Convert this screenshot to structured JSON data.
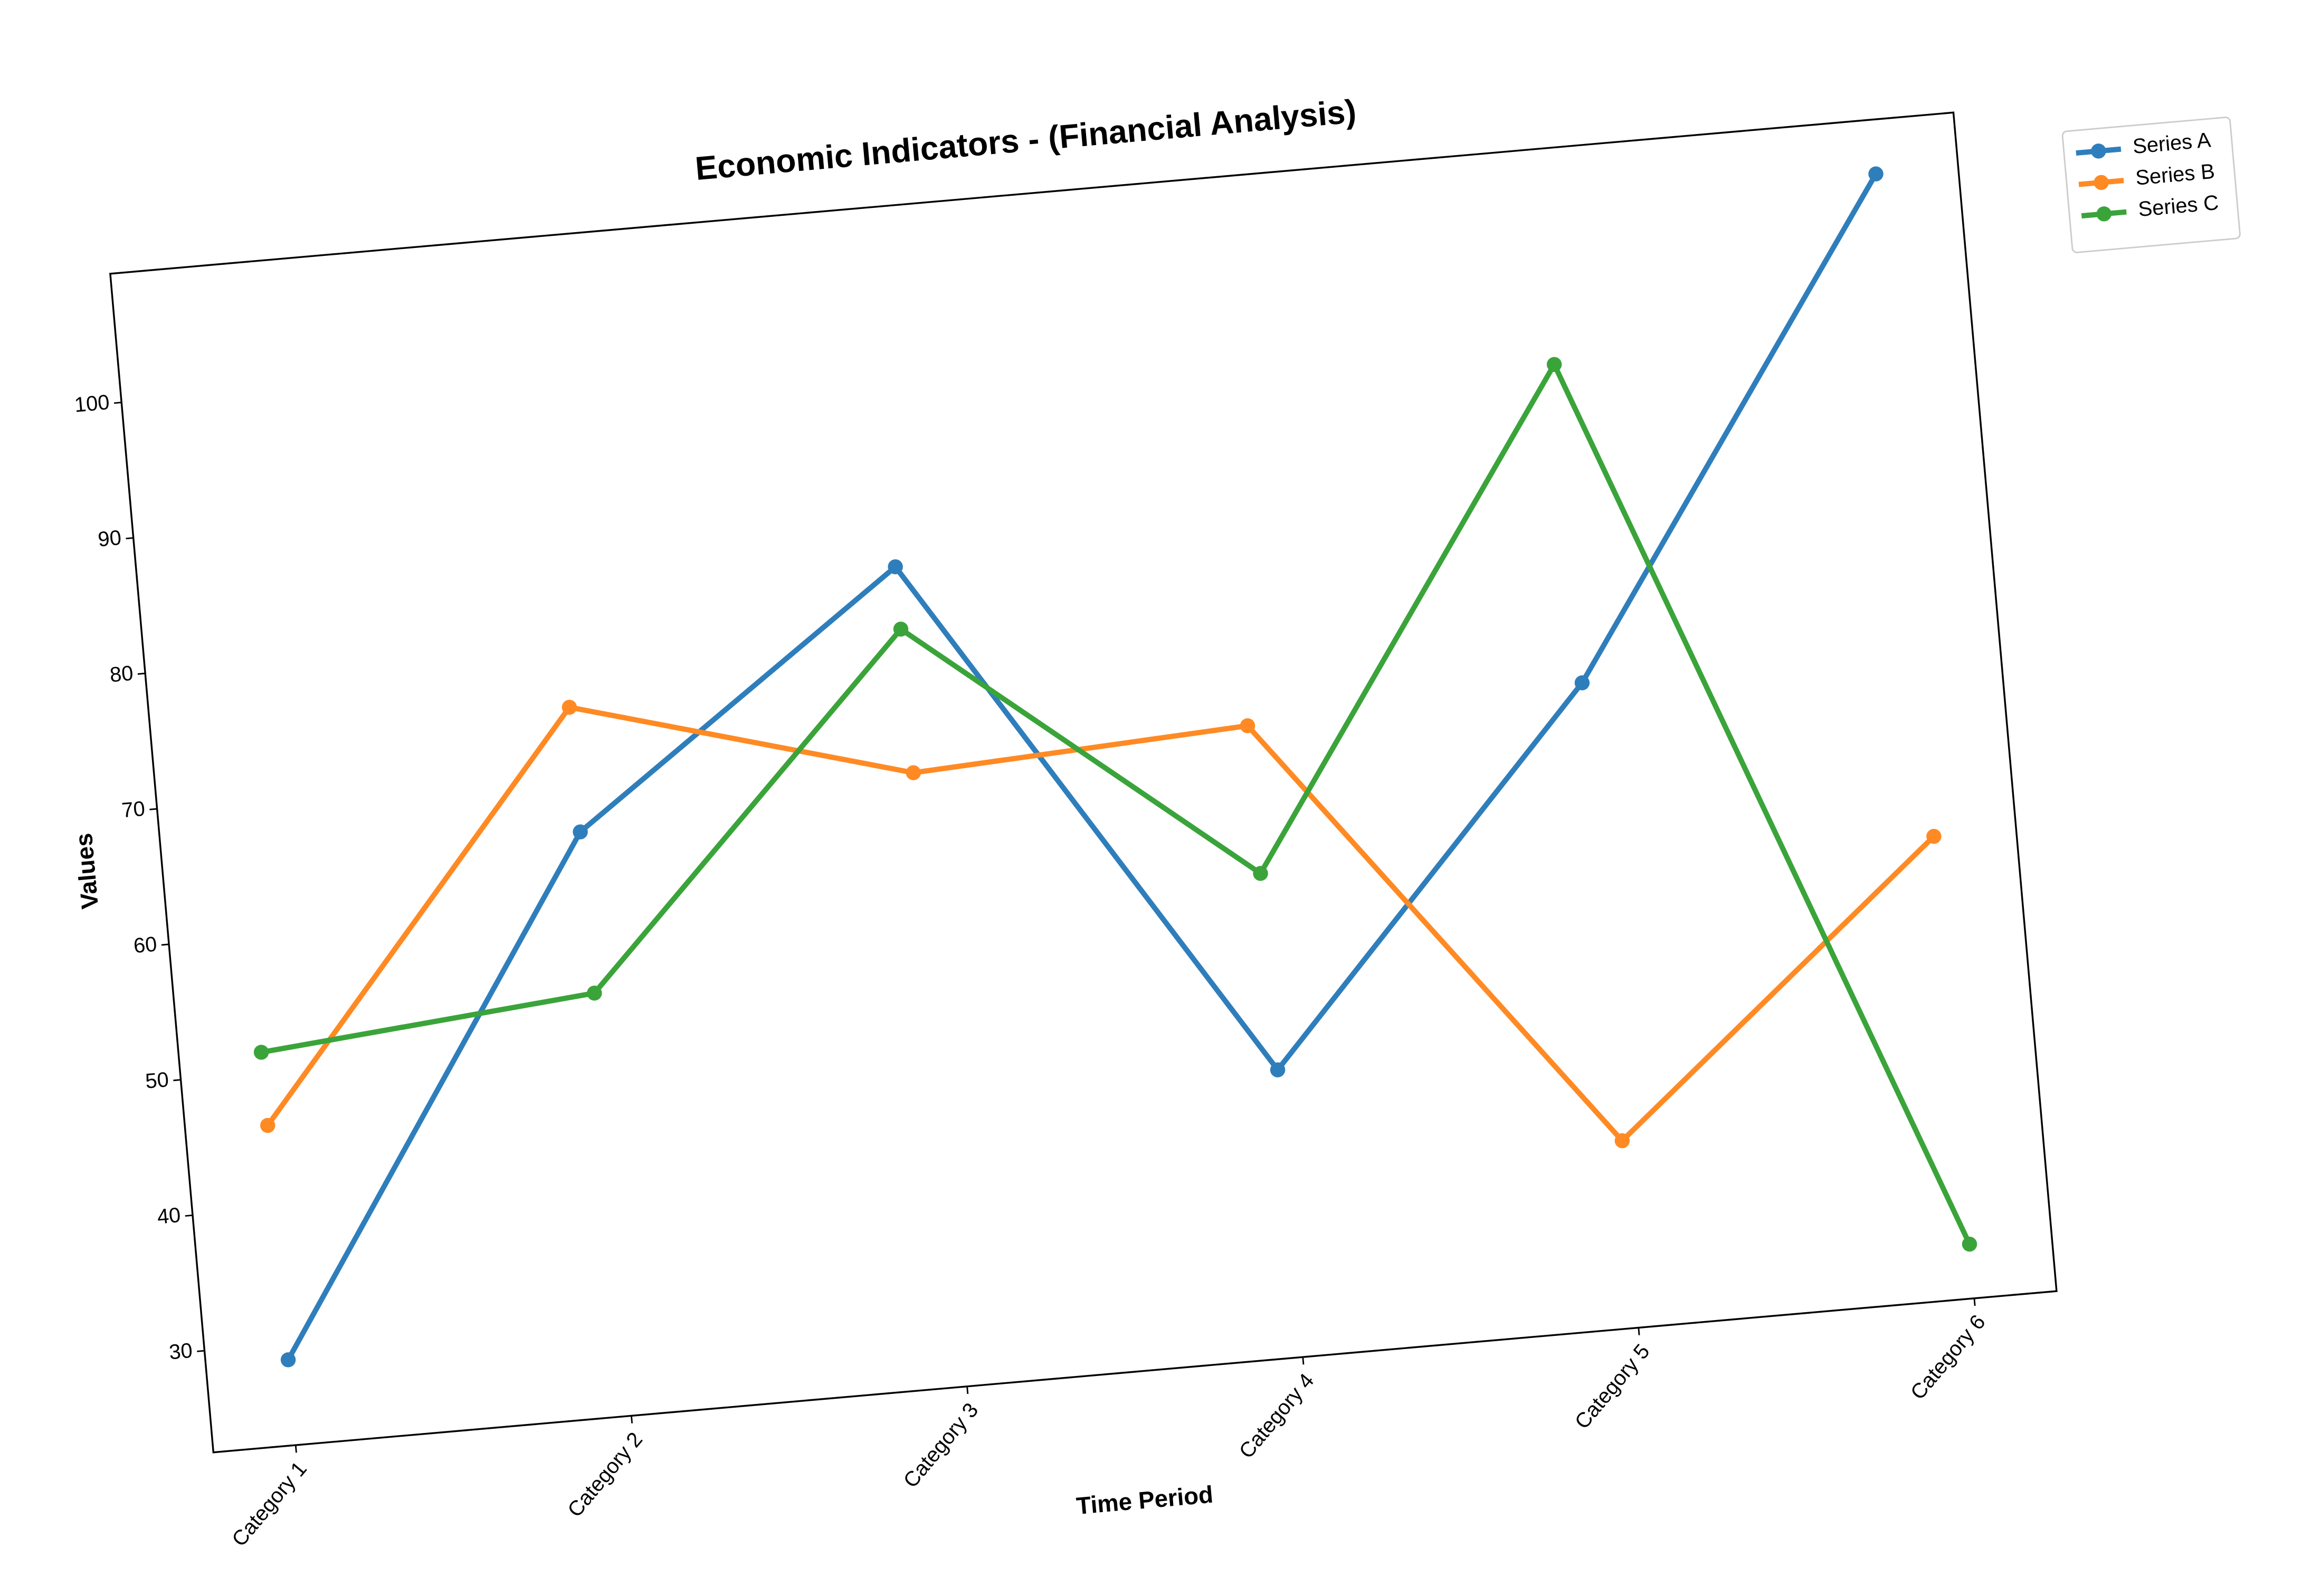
{
  "chart_data": {
    "type": "line",
    "title": "Economic Indicators - (Financial Analysis)",
    "x_label": "Time Period",
    "y_label": "Values",
    "categories": [
      "Category 1",
      "Category 2",
      "Category 3",
      "Category 4",
      "Category 5",
      "Category 6"
    ],
    "series": [
      {
        "name": "Series A",
        "color": "#2f7ebc",
        "values": [
          28.8,
          65.6,
          83.0,
          43.7,
          70.1,
          105.5
        ]
      },
      {
        "name": "Series B",
        "color": "#ff8a24",
        "values": [
          46.1,
          74.8,
          67.8,
          69.1,
          36.3,
          56.6
        ]
      },
      {
        "name": "Series C",
        "color": "#3aa43a",
        "values": [
          51.5,
          53.7,
          78.4,
          58.2,
          93.6,
          26.5
        ]
      }
    ],
    "ylim": [
      22.5,
      109.5
    ],
    "yticks": [
      30,
      40,
      50,
      60,
      70,
      80,
      90,
      100
    ],
    "grid": false,
    "legend": "upper right"
  }
}
